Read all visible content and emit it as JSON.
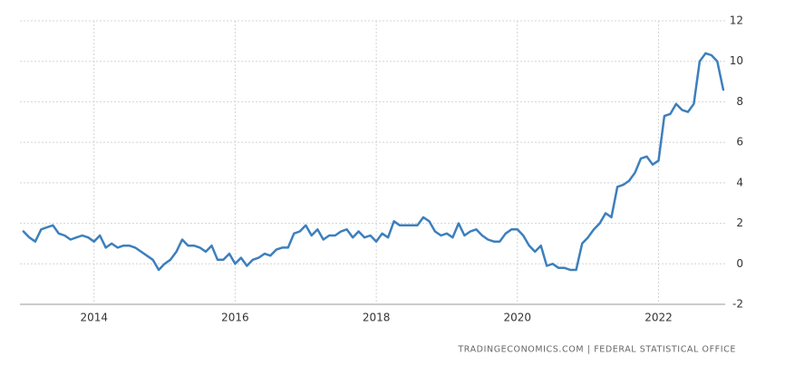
{
  "chart_data": {
    "type": "line",
    "source": "TRADINGECONOMICS.COM | FEDERAL STATISTICAL OFFICE",
    "x": [
      2013,
      2013.083,
      2013.167,
      2013.25,
      2013.333,
      2013.417,
      2013.5,
      2013.583,
      2013.667,
      2013.75,
      2013.833,
      2013.917,
      2014,
      2014.083,
      2014.167,
      2014.25,
      2014.333,
      2014.417,
      2014.5,
      2014.583,
      2014.667,
      2014.75,
      2014.833,
      2014.917,
      2015,
      2015.083,
      2015.167,
      2015.25,
      2015.333,
      2015.417,
      2015.5,
      2015.583,
      2015.667,
      2015.75,
      2015.833,
      2015.917,
      2016,
      2016.083,
      2016.167,
      2016.25,
      2016.333,
      2016.417,
      2016.5,
      2016.583,
      2016.667,
      2016.75,
      2016.833,
      2016.917,
      2017,
      2017.083,
      2017.167,
      2017.25,
      2017.333,
      2017.417,
      2017.5,
      2017.583,
      2017.667,
      2017.75,
      2017.833,
      2017.917,
      2018,
      2018.083,
      2018.167,
      2018.25,
      2018.333,
      2018.417,
      2018.5,
      2018.583,
      2018.667,
      2018.75,
      2018.833,
      2018.917,
      2019,
      2019.083,
      2019.167,
      2019.25,
      2019.333,
      2019.417,
      2019.5,
      2019.583,
      2019.667,
      2019.75,
      2019.833,
      2019.917,
      2020,
      2020.083,
      2020.167,
      2020.25,
      2020.333,
      2020.417,
      2020.5,
      2020.583,
      2020.667,
      2020.75,
      2020.833,
      2020.917,
      2021,
      2021.083,
      2021.167,
      2021.25,
      2021.333,
      2021.417,
      2021.5,
      2021.583,
      2021.667,
      2021.75,
      2021.833,
      2021.917,
      2022,
      2022.083,
      2022.167,
      2022.25,
      2022.333,
      2022.417,
      2022.5,
      2022.583,
      2022.667,
      2022.75,
      2022.833,
      2022.917
    ],
    "series": [
      {
        "color": "#3d7fbd",
        "values": [
          1.6,
          1.3,
          1.1,
          1.7,
          1.8,
          1.9,
          1.5,
          1.4,
          1.2,
          1.3,
          1.4,
          1.3,
          1.1,
          1.4,
          0.8,
          1.0,
          0.8,
          0.9,
          0.9,
          0.8,
          0.6,
          0.4,
          0.2,
          -0.3,
          0.0,
          0.2,
          0.6,
          1.2,
          0.9,
          0.9,
          0.8,
          0.6,
          0.9,
          0.2,
          0.2,
          0.5,
          0.0,
          0.3,
          -0.1,
          0.2,
          0.3,
          0.5,
          0.4,
          0.7,
          0.8,
          0.8,
          1.5,
          1.6,
          1.9,
          1.4,
          1.7,
          1.2,
          1.4,
          1.4,
          1.6,
          1.7,
          1.3,
          1.6,
          1.3,
          1.4,
          1.1,
          1.5,
          1.3,
          2.1,
          1.9,
          1.9,
          1.9,
          1.9,
          2.3,
          2.1,
          1.6,
          1.4,
          1.5,
          1.3,
          2.0,
          1.4,
          1.6,
          1.7,
          1.4,
          1.2,
          1.1,
          1.1,
          1.5,
          1.7,
          1.7,
          1.4,
          0.9,
          0.6,
          0.9,
          -0.1,
          0.0,
          -0.2,
          -0.2,
          -0.3,
          -0.3,
          1.0,
          1.3,
          1.7,
          2.0,
          2.5,
          2.3,
          3.8,
          3.9,
          4.1,
          4.5,
          5.2,
          5.3,
          4.9,
          5.1,
          7.3,
          7.4,
          7.9,
          7.6,
          7.5,
          7.9,
          10.0,
          10.4,
          10.3,
          10.0,
          8.6
        ]
      }
    ],
    "xlim": [
      2012.95,
      2023.33
    ],
    "xticks": [
      2014,
      2016,
      2018,
      2020,
      2022
    ],
    "ylim": [
      -2,
      12
    ],
    "yticks": [
      -2,
      0,
      2,
      4,
      6,
      8,
      10,
      12
    ],
    "grid": true
  }
}
